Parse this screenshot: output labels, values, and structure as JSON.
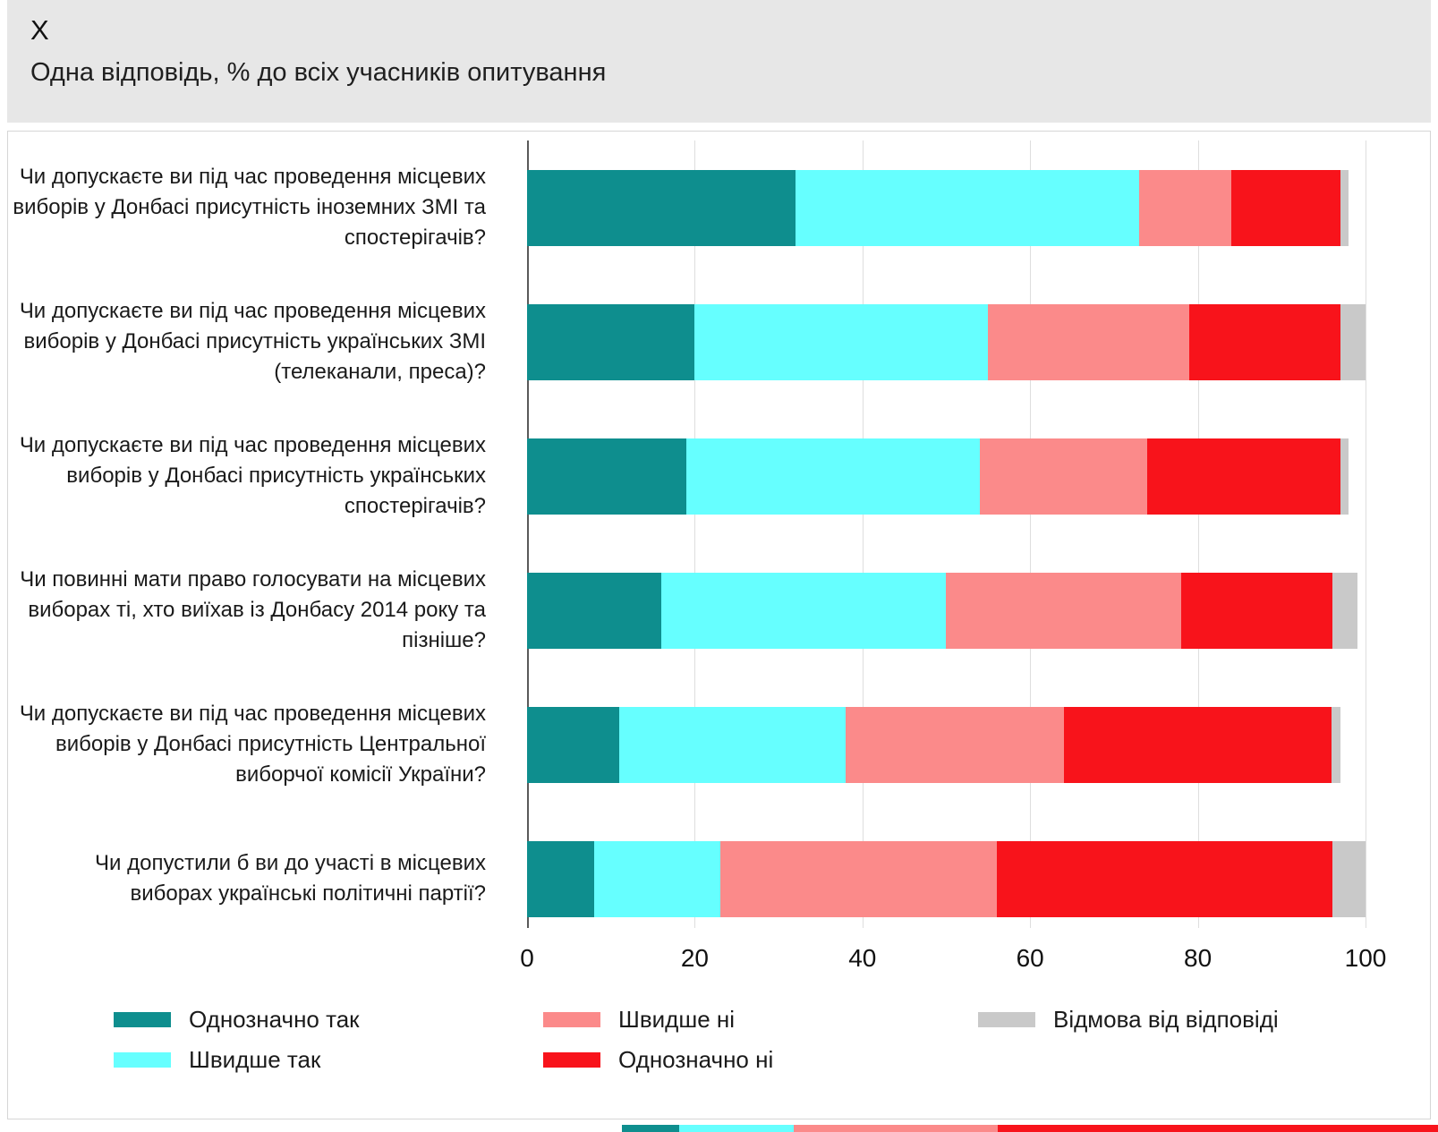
{
  "chart_data": {
    "type": "bar",
    "orientation": "horizontal",
    "stacked": true,
    "title": "X",
    "subtitle": "Одна відповідь, % до всіх учасників опитування",
    "xlabel": "",
    "ylabel": "",
    "xlim": [
      0,
      100
    ],
    "x_ticks": [
      0,
      20,
      40,
      60,
      80,
      100
    ],
    "grid": true,
    "legend_position": "bottom",
    "categories": [
      "Чи допускаєте ви під час проведення місцевих виборів у Донбасі присутність іноземних ЗМІ та спостерігачів?",
      "Чи допускаєте ви під час проведення місцевих виборів у Донбасі присутність українських ЗМІ (телеканали, преса)?",
      "Чи допускаєте ви під час проведення місцевих виборів у Донбасі присутність українських спостерігачів?",
      "Чи повинні мати право голосувати на місцевих виборах ті, хто виїхав із Донбасу 2014 року та пізніше?",
      "Чи допускаєте ви під час проведення місцевих виборів у Донбасі присутність Центральної виборчої комісії України?",
      "Чи допустили б ви до участі в місцевих виборах українські політичні партії?"
    ],
    "series": [
      {
        "key": "def-yes",
        "name": "Однозначно так",
        "color": "#0e8e8e",
        "values": [
          32,
          20,
          19,
          16,
          11,
          8
        ]
      },
      {
        "key": "rather-yes",
        "name": "Швидше так",
        "color": "#66ffff",
        "values": [
          41,
          35,
          35,
          34,
          27,
          15
        ]
      },
      {
        "key": "rather-no",
        "name": "Швидше ні",
        "color": "#fb8a8a",
        "values": [
          11,
          24,
          20,
          28,
          26,
          33
        ]
      },
      {
        "key": "def-no",
        "name": "Однозначно ні",
        "color": "#f8131b",
        "values": [
          13,
          18,
          23,
          18,
          32,
          40
        ]
      },
      {
        "key": "refused",
        "name": "Відмова від відповіді",
        "color": "#c9c9c9",
        "values": [
          1,
          3,
          1,
          3,
          1,
          4
        ]
      }
    ]
  },
  "legend": {
    "columns": [
      [
        0,
        1
      ],
      [
        2,
        3
      ],
      [
        4
      ]
    ]
  },
  "bottom_strip": {
    "segments": [
      {
        "color": "#0e8e8e",
        "width_pct": 7
      },
      {
        "color": "#66ffff",
        "width_pct": 14
      },
      {
        "color": "#fb8a8a",
        "width_pct": 25
      },
      {
        "color": "#f8131b",
        "width_pct": 54
      }
    ]
  }
}
